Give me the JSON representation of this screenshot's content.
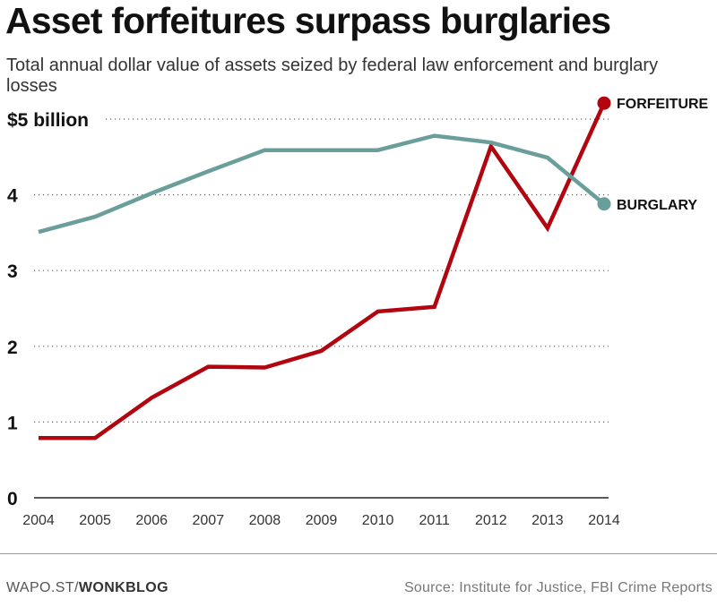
{
  "chart_data": {
    "type": "line",
    "title": "Asset forfeitures surpass burglaries",
    "subtitle": "Total annual dollar value of assets seized by federal law enforcement and burglary losses",
    "x": [
      2004,
      2005,
      2006,
      2007,
      2008,
      2009,
      2010,
      2011,
      2012,
      2013,
      2014
    ],
    "ylim": [
      0,
      5
    ],
    "yticks": [
      0,
      1,
      2,
      3,
      4,
      5
    ],
    "ytick_labels": [
      "0",
      "1",
      "2",
      "3",
      "4",
      "$5 billion"
    ],
    "grid": true,
    "series": [
      {
        "name": "FORFEITURE",
        "color": "#b1050f",
        "values": [
          0.79,
          0.79,
          1.32,
          1.73,
          1.72,
          1.94,
          2.46,
          2.52,
          4.64,
          3.56,
          5.21
        ]
      },
      {
        "name": "BURGLARY",
        "color": "#6a9e9a",
        "values": [
          3.51,
          3.71,
          4.02,
          4.31,
          4.59,
          4.59,
          4.59,
          4.78,
          4.69,
          4.49,
          3.88
        ]
      }
    ]
  },
  "footer": {
    "site_prefix": "WAPO.ST/",
    "site_name": "WONKBLOG",
    "source": "Source: Institute for Justice, FBI Crime Reports"
  }
}
